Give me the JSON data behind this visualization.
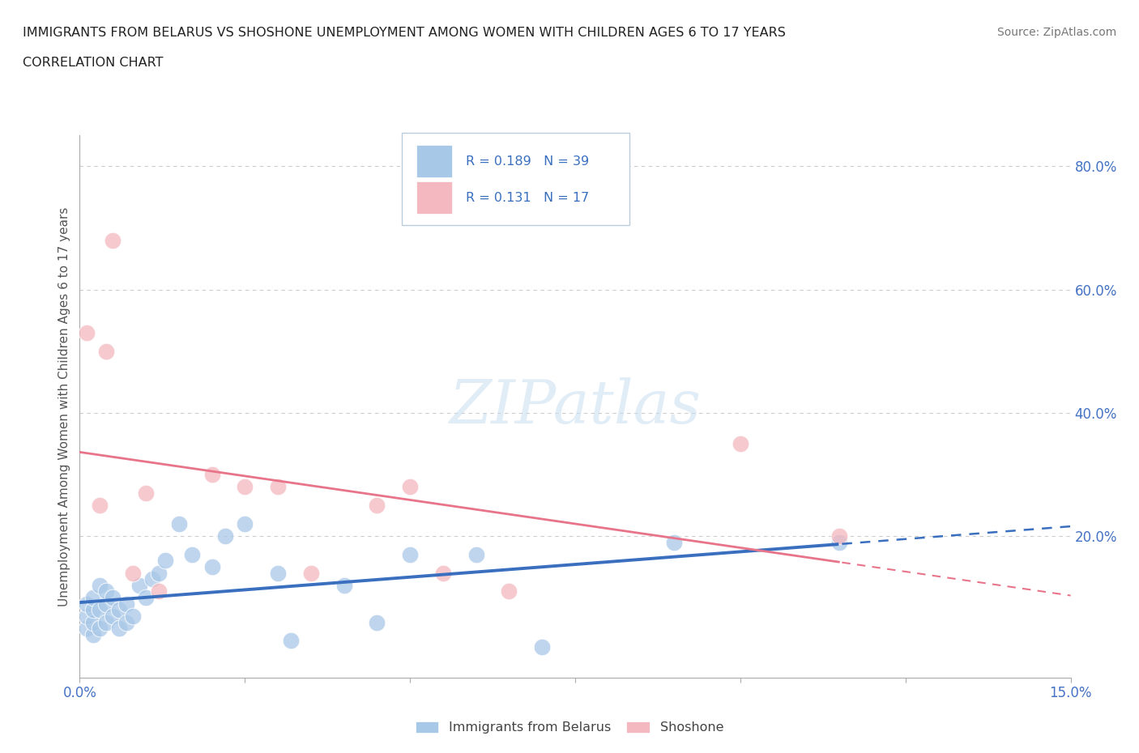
{
  "title_line1": "IMMIGRANTS FROM BELARUS VS SHOSHONE UNEMPLOYMENT AMONG WOMEN WITH CHILDREN AGES 6 TO 17 YEARS",
  "title_line2": "CORRELATION CHART",
  "source_text": "Source: ZipAtlas.com",
  "ylabel": "Unemployment Among Women with Children Ages 6 to 17 years",
  "xlim": [
    0.0,
    0.15
  ],
  "ylim": [
    -0.03,
    0.85
  ],
  "background_color": "#ffffff",
  "grid_color": "#cccccc",
  "blue_color": "#a8c8e8",
  "pink_color": "#f4b8c0",
  "blue_line_color": "#3a6fbf",
  "pink_line_color": "#e8748a",
  "blue_scatter_x": [
    0.001,
    0.001,
    0.001,
    0.002,
    0.002,
    0.002,
    0.002,
    0.003,
    0.003,
    0.003,
    0.004,
    0.004,
    0.004,
    0.005,
    0.005,
    0.006,
    0.006,
    0.007,
    0.007,
    0.008,
    0.009,
    0.01,
    0.011,
    0.012,
    0.013,
    0.015,
    0.017,
    0.02,
    0.022,
    0.025,
    0.03,
    0.032,
    0.04,
    0.045,
    0.05,
    0.06,
    0.07,
    0.09,
    0.115
  ],
  "blue_scatter_y": [
    0.05,
    0.07,
    0.09,
    0.04,
    0.06,
    0.08,
    0.1,
    0.05,
    0.08,
    0.12,
    0.06,
    0.09,
    0.11,
    0.07,
    0.1,
    0.05,
    0.08,
    0.06,
    0.09,
    0.07,
    0.12,
    0.1,
    0.13,
    0.14,
    0.16,
    0.22,
    0.17,
    0.15,
    0.2,
    0.22,
    0.14,
    0.03,
    0.12,
    0.06,
    0.17,
    0.17,
    0.02,
    0.19,
    0.19
  ],
  "pink_scatter_x": [
    0.001,
    0.003,
    0.004,
    0.005,
    0.008,
    0.01,
    0.012,
    0.02,
    0.025,
    0.03,
    0.035,
    0.045,
    0.05,
    0.055,
    0.065,
    0.1,
    0.115
  ],
  "pink_scatter_y": [
    0.53,
    0.25,
    0.5,
    0.68,
    0.14,
    0.27,
    0.11,
    0.3,
    0.28,
    0.28,
    0.14,
    0.25,
    0.28,
    0.14,
    0.11,
    0.35,
    0.2
  ],
  "legend_text_color": "#3a6fbf",
  "legend_border_color": "#bbccdd"
}
